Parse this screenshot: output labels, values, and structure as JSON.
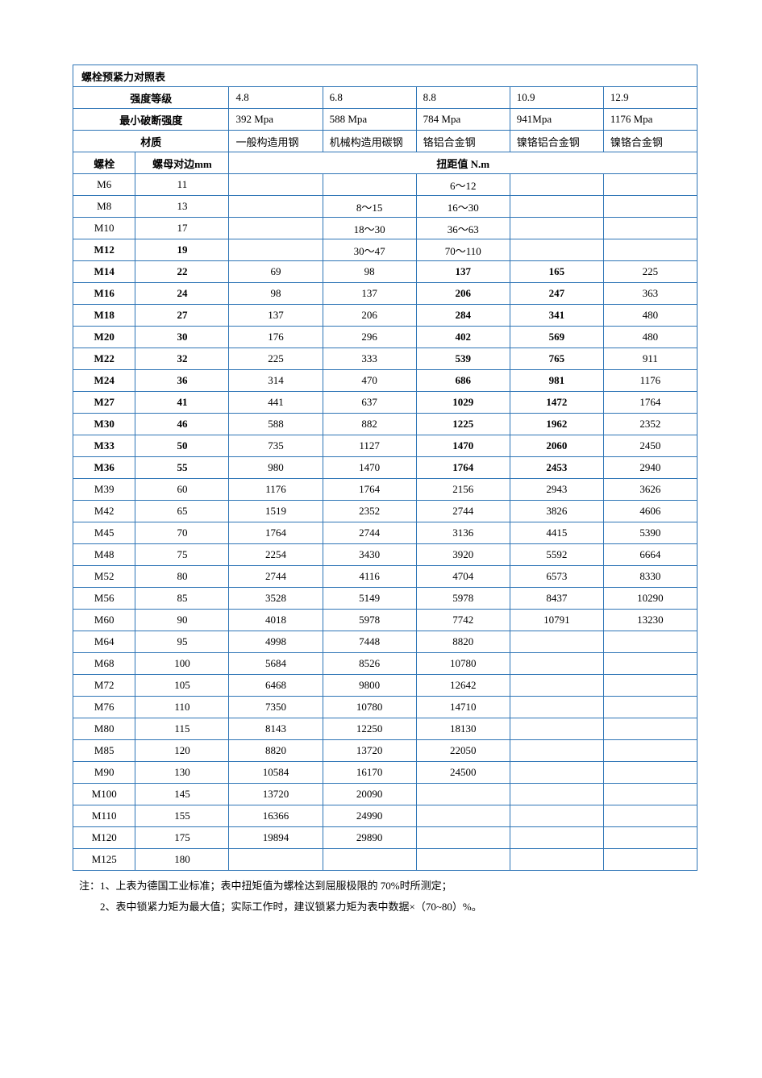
{
  "border_color": "#2e75b6",
  "background_color": "#ffffff",
  "text_color": "#000000",
  "font_family": "SimSun",
  "title": "螺栓预紧力对照表",
  "header_rows": {
    "strength_grade_label": "强度等级",
    "min_break_label": "最小破断强度",
    "material_label": "材质",
    "bolt_label": "螺栓",
    "nut_label": "螺母对边mm",
    "torque_label": "扭距值 N.m"
  },
  "grades": [
    "4.8",
    "6.8",
    "8.8",
    "10.9",
    "12.9"
  ],
  "min_break": [
    "392  Mpa",
    "588  Mpa",
    "784  Mpa",
    "941Mpa",
    "1176  Mpa"
  ],
  "materials": [
    "一般构造用钢",
    "机械构造用碳钢",
    "铬铝合金钢",
    "镍铬铝合金钢",
    "镍铬合金钢"
  ],
  "rows": [
    {
      "bolt": "M6",
      "nut": "11",
      "bold": false,
      "v": [
        "",
        "",
        "6～12",
        "",
        ""
      ]
    },
    {
      "bolt": "M8",
      "nut": "13",
      "bold": false,
      "v": [
        "",
        "8～15",
        "16～30",
        "",
        ""
      ]
    },
    {
      "bolt": "M10",
      "nut": "17",
      "bold": false,
      "v": [
        "",
        "18～30",
        "36～63",
        "",
        ""
      ]
    },
    {
      "bolt": "M12",
      "nut": "19",
      "bold": true,
      "v": [
        "",
        "30～47",
        "70～110",
        "",
        ""
      ]
    },
    {
      "bolt": "M14",
      "nut": "22",
      "bold": true,
      "v": [
        "69",
        "98",
        "137",
        "165",
        "225"
      ],
      "boldcols": [
        2,
        3
      ]
    },
    {
      "bolt": "M16",
      "nut": "24",
      "bold": true,
      "v": [
        "98",
        "137",
        "206",
        "247",
        "363"
      ],
      "boldcols": [
        2,
        3
      ]
    },
    {
      "bolt": "M18",
      "nut": "27",
      "bold": true,
      "v": [
        "137",
        "206",
        "284",
        "341",
        "480"
      ],
      "boldcols": [
        2,
        3
      ]
    },
    {
      "bolt": "M20",
      "nut": "30",
      "bold": true,
      "v": [
        "176",
        "296",
        "402",
        "569",
        "480"
      ],
      "boldcols": [
        2,
        3
      ]
    },
    {
      "bolt": "M22",
      "nut": "32",
      "bold": true,
      "v": [
        "225",
        "333",
        "539",
        "765",
        "911"
      ],
      "boldcols": [
        2,
        3
      ]
    },
    {
      "bolt": "M24",
      "nut": "36",
      "bold": true,
      "v": [
        "314",
        "470",
        "686",
        "981",
        "1176"
      ],
      "boldcols": [
        2,
        3
      ]
    },
    {
      "bolt": "M27",
      "nut": "41",
      "bold": true,
      "v": [
        "441",
        "637",
        "1029",
        "1472",
        "1764"
      ],
      "boldcols": [
        2,
        3
      ]
    },
    {
      "bolt": "M30",
      "nut": "46",
      "bold": true,
      "v": [
        "588",
        "882",
        "1225",
        "1962",
        "2352"
      ],
      "boldcols": [
        2,
        3
      ]
    },
    {
      "bolt": "M33",
      "nut": "50",
      "bold": true,
      "v": [
        "735",
        "1127",
        "1470",
        "2060",
        "2450"
      ],
      "boldcols": [
        2,
        3
      ]
    },
    {
      "bolt": "M36",
      "nut": "55",
      "bold": true,
      "v": [
        "980",
        "1470",
        "1764",
        "2453",
        "2940"
      ],
      "boldcols": [
        2,
        3
      ]
    },
    {
      "bolt": "M39",
      "nut": "60",
      "bold": false,
      "v": [
        "1176",
        "1764",
        "2156",
        "2943",
        "3626"
      ]
    },
    {
      "bolt": "M42",
      "nut": "65",
      "bold": false,
      "v": [
        "1519",
        "2352",
        "2744",
        "3826",
        "4606"
      ]
    },
    {
      "bolt": "M45",
      "nut": "70",
      "bold": false,
      "v": [
        "1764",
        "2744",
        "3136",
        "4415",
        "5390"
      ]
    },
    {
      "bolt": "M48",
      "nut": "75",
      "bold": false,
      "v": [
        "2254",
        "3430",
        "3920",
        "5592",
        "6664"
      ]
    },
    {
      "bolt": "M52",
      "nut": "80",
      "bold": false,
      "v": [
        "2744",
        "4116",
        "4704",
        "6573",
        "8330"
      ]
    },
    {
      "bolt": "M56",
      "nut": "85",
      "bold": false,
      "v": [
        "3528",
        "5149",
        "5978",
        "8437",
        "10290"
      ]
    },
    {
      "bolt": "M60",
      "nut": "90",
      "bold": false,
      "v": [
        "4018",
        "5978",
        "7742",
        "10791",
        "13230"
      ]
    },
    {
      "bolt": "M64",
      "nut": "95",
      "bold": false,
      "v": [
        "4998",
        "7448",
        "8820",
        "",
        ""
      ]
    },
    {
      "bolt": "M68",
      "nut": "100",
      "bold": false,
      "v": [
        "5684",
        "8526",
        "10780",
        "",
        ""
      ]
    },
    {
      "bolt": "M72",
      "nut": "105",
      "bold": false,
      "v": [
        "6468",
        "9800",
        "12642",
        "",
        ""
      ]
    },
    {
      "bolt": "M76",
      "nut": "110",
      "bold": false,
      "v": [
        "7350",
        "10780",
        "14710",
        "",
        ""
      ]
    },
    {
      "bolt": "M80",
      "nut": "115",
      "bold": false,
      "v": [
        "8143",
        "12250",
        "18130",
        "",
        ""
      ]
    },
    {
      "bolt": "M85",
      "nut": "120",
      "bold": false,
      "v": [
        "8820",
        "13720",
        "22050",
        "",
        ""
      ]
    },
    {
      "bolt": "M90",
      "nut": "130",
      "bold": false,
      "v": [
        "10584",
        "16170",
        "24500",
        "",
        ""
      ]
    },
    {
      "bolt": "M100",
      "nut": "145",
      "bold": false,
      "v": [
        "13720",
        "20090",
        "",
        "",
        ""
      ]
    },
    {
      "bolt": "M110",
      "nut": "155",
      "bold": false,
      "v": [
        "16366",
        "24990",
        "",
        "",
        ""
      ]
    },
    {
      "bolt": "M120",
      "nut": "175",
      "bold": false,
      "v": [
        "19894",
        "29890",
        "",
        "",
        ""
      ]
    },
    {
      "bolt": "M125",
      "nut": "180",
      "bold": false,
      "v": [
        "",
        "",
        "",
        "",
        ""
      ]
    }
  ],
  "notes": {
    "line1": "注：1、上表为德国工业标准；表中扭矩值为螺栓达到屈服极限的 70%时所测定；",
    "line2": "　　2、表中锁紧力矩为最大值；实际工作时，建议锁紧力矩为表中数据×（70~80）%。"
  }
}
